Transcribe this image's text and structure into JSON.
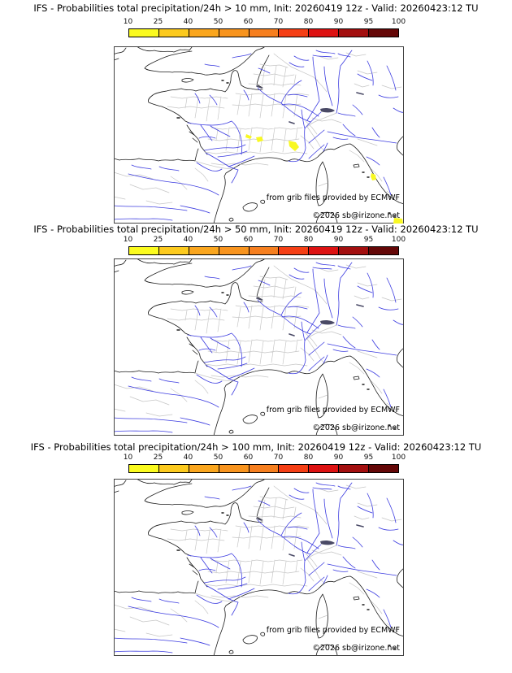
{
  "panels": [
    {
      "title": "IFS - Probabilities total precipitation/24h > 10 mm, Init: 20260419 12z - Valid: 20260423:12 TU",
      "threshold": "10 mm",
      "init": "20260419 12z",
      "valid": "20260423:12 TU",
      "has_probability_patches": true
    },
    {
      "title": "IFS - Probabilities total precipitation/24h > 50 mm, Init: 20260419 12z - Valid: 20260423:12 TU",
      "threshold": "50 mm",
      "init": "20260419 12z",
      "valid": "20260423:12 TU",
      "has_probability_patches": false
    },
    {
      "title": "IFS - Probabilities total precipitation/24h > 100 mm, Init: 20260419 12z - Valid: 20260423:12 TU",
      "threshold": "100 mm",
      "init": "20260419 12z",
      "valid": "20260423:12 TU",
      "has_probability_patches": false
    }
  ],
  "colorbar": {
    "tick_labels": [
      "10",
      "25",
      "40",
      "50",
      "60",
      "70",
      "80",
      "90",
      "95",
      "100"
    ],
    "thresholds_percent": [
      10,
      25,
      40,
      50,
      60,
      70,
      80,
      90,
      95,
      100
    ],
    "segment_colors": [
      "#fbfb1f",
      "#fcca1e",
      "#faa61e",
      "#f8941e",
      "#f67f1f",
      "#f53f15",
      "#dd1212",
      "#a30f0f",
      "#640707"
    ]
  },
  "map": {
    "attribution_line1": "from grib files provided by ECMWF",
    "attribution_line2": "©2026 sb@irizone.net",
    "region": "France and surroundings",
    "overlay_note": "yellow patches on panel 1 only: 10-25% probability areas (Cevennes/Languedoc, Italian coast)",
    "colors": {
      "coast": "#1b1b1b",
      "river": "#3b3be0",
      "dept": "#c6c6c6",
      "patch": "#f8f822",
      "lake": "#4a4a66",
      "frame": "#444444"
    }
  }
}
